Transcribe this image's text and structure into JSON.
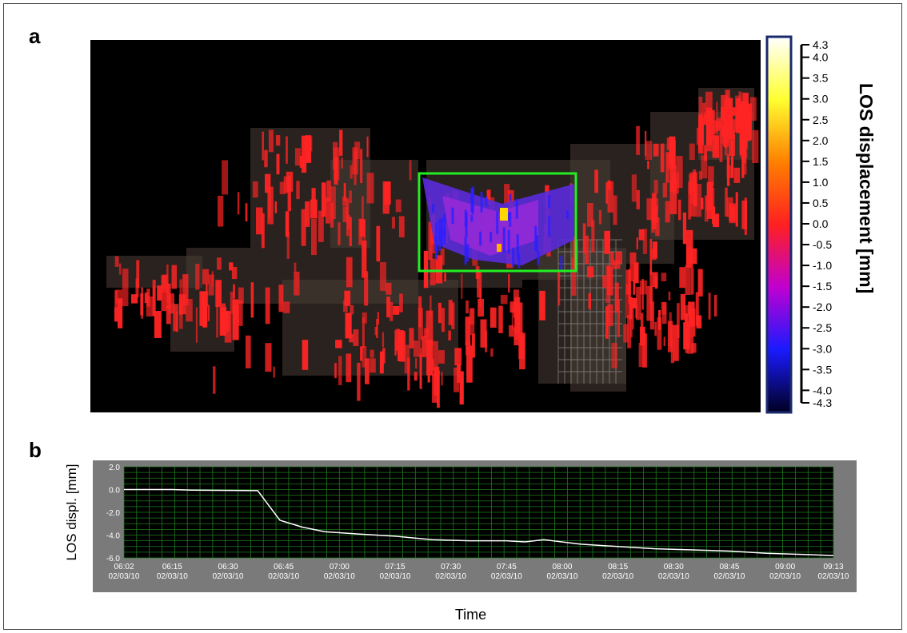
{
  "panels": {
    "a_label": "a",
    "b_label": "b"
  },
  "colorbar": {
    "title": "LOS displacement [mm]",
    "ticks": [
      "4.3",
      "4.0",
      "3.5",
      "3.0",
      "2.5",
      "2.0",
      "1.5",
      "1.0",
      "0.5",
      "0.0",
      "-0.5",
      "-1.0",
      "-1.5",
      "-2.0",
      "-2.5",
      "-3.0",
      "-3.5",
      "-4.0",
      "-4.3"
    ],
    "range": [
      -4.3,
      4.3
    ],
    "colors": [
      "#000020",
      "#1a1aff",
      "#c000d0",
      "#ff2020",
      "#ff8000",
      "#ffff30",
      "#ffffff"
    ]
  },
  "scene": {
    "highlight_color": "#22ee22",
    "background": "#000000"
  },
  "chart_data": {
    "type": "line",
    "xlabel": "Time",
    "ylabel": "LOS displ. [mm]",
    "ylim": [
      -6.0,
      2.0
    ],
    "y_ticks": [
      "2.0",
      "0.0",
      "-2.0",
      "-4.0",
      "-6.0"
    ],
    "x_ticks": [
      {
        "time": "06:02",
        "date": "02/03/10"
      },
      {
        "time": "06:15",
        "date": "02/03/10"
      },
      {
        "time": "06:30",
        "date": "02/03/10"
      },
      {
        "time": "06:45",
        "date": "02/03/10"
      },
      {
        "time": "07:00",
        "date": "02/03/10"
      },
      {
        "time": "07:15",
        "date": "02/03/10"
      },
      {
        "time": "07:30",
        "date": "02/03/10"
      },
      {
        "time": "07:45",
        "date": "02/03/10"
      },
      {
        "time": "08:00",
        "date": "02/03/10"
      },
      {
        "time": "08:15",
        "date": "02/03/10"
      },
      {
        "time": "08:30",
        "date": "02/03/10"
      },
      {
        "time": "08:45",
        "date": "02/03/10"
      },
      {
        "time": "09:00",
        "date": "02/03/10"
      },
      {
        "time": "09:13",
        "date": "02/03/10"
      }
    ],
    "grid": true,
    "series": [
      {
        "x": [
          "06:02",
          "06:15",
          "06:20",
          "06:38",
          "06:44",
          "06:50",
          "06:56",
          "07:05",
          "07:15",
          "07:25",
          "07:35",
          "07:45",
          "07:50",
          "07:55",
          "08:05",
          "08:15",
          "08:25",
          "08:35",
          "08:45",
          "08:55",
          "09:05",
          "09:13"
        ],
        "y": [
          0.0,
          0.0,
          -0.05,
          -0.1,
          -2.7,
          -3.3,
          -3.7,
          -3.9,
          -4.1,
          -4.4,
          -4.5,
          -4.5,
          -4.6,
          -4.4,
          -4.8,
          -5.0,
          -5.2,
          -5.3,
          -5.4,
          -5.6,
          -5.7,
          -5.8
        ]
      }
    ]
  }
}
